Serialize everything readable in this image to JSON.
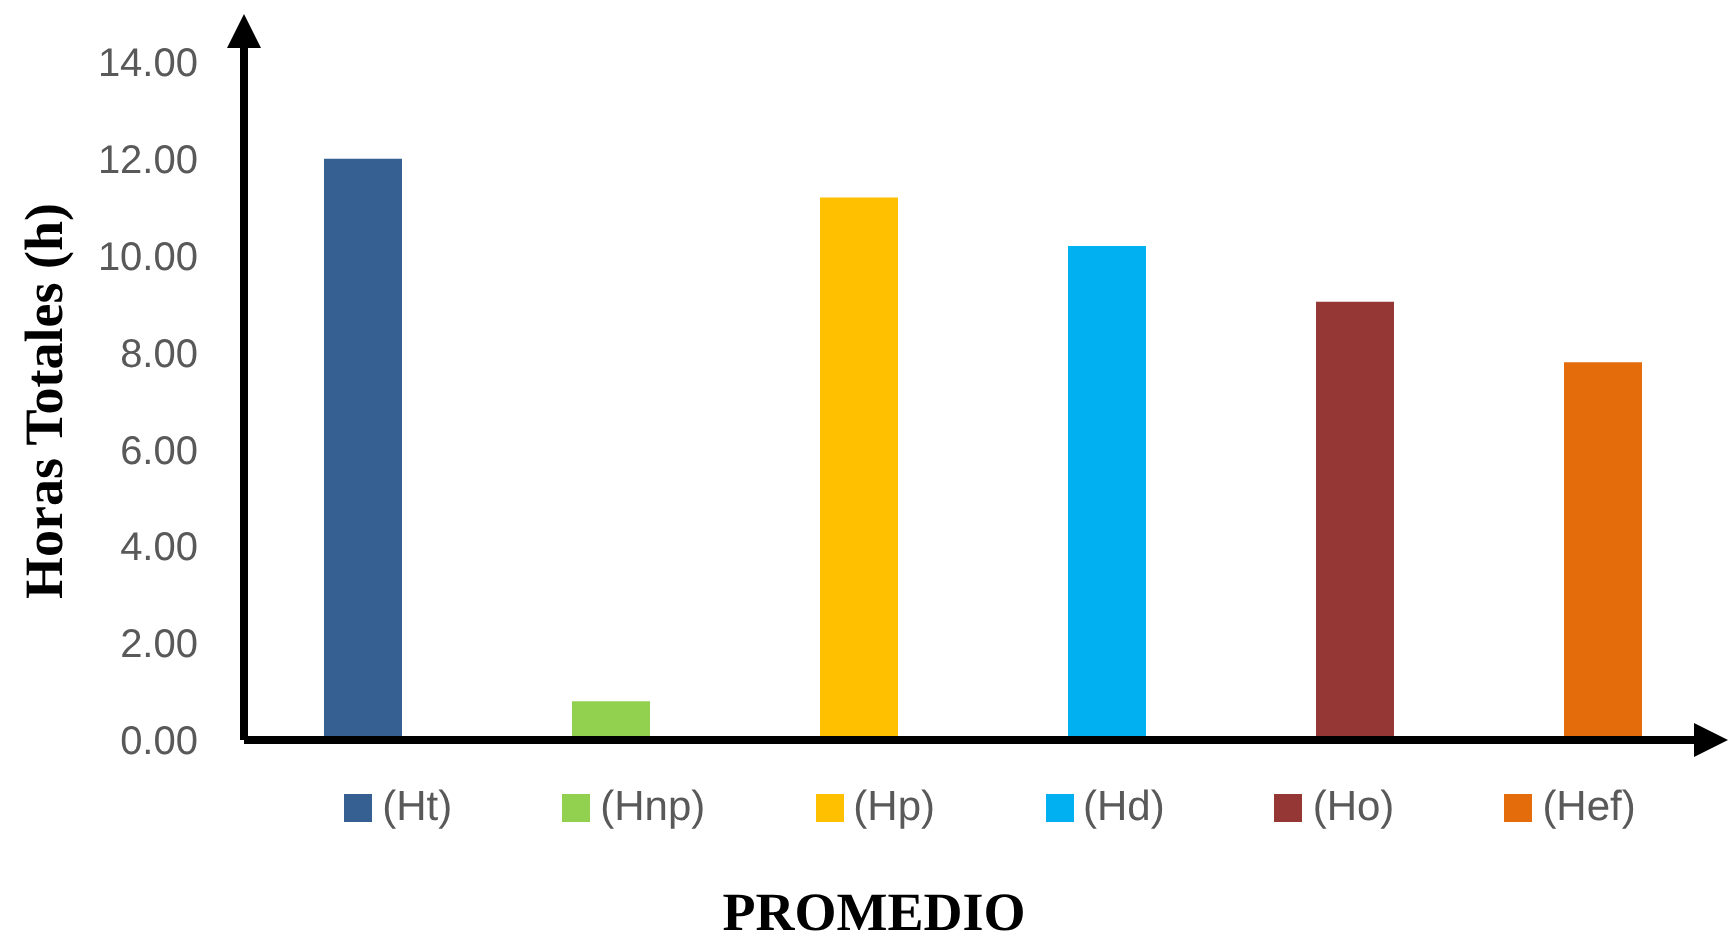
{
  "chart_data": {
    "type": "bar",
    "xlabel": "PROMEDIO",
    "ylabel": "Horas Totales (h)",
    "categories": [
      null
    ],
    "series": [
      {
        "name": "(Ht)",
        "color": "#376092",
        "values": [
          12.0
        ]
      },
      {
        "name": "(Hnp)",
        "color": "#92d050",
        "values": [
          0.8
        ]
      },
      {
        "name": "(Hp)",
        "color": "#ffc000",
        "values": [
          11.2
        ]
      },
      {
        "name": "(Hd)",
        "color": "#00b0f0",
        "values": [
          10.2
        ]
      },
      {
        "name": "(Ho)",
        "color": "#953735",
        "values": [
          9.05
        ]
      },
      {
        "name": "(Hef)",
        "color": "#e46c0a",
        "values": [
          7.8
        ]
      }
    ],
    "ylim": [
      0,
      14
    ],
    "yticks": [
      {
        "value": 0,
        "label": "0.00"
      },
      {
        "value": 2,
        "label": "2.00"
      },
      {
        "value": 4,
        "label": "4.00"
      },
      {
        "value": 6,
        "label": "6.00"
      },
      {
        "value": 8,
        "label": "8.00"
      },
      {
        "value": 10,
        "label": "10.00"
      },
      {
        "value": 12,
        "label": "12.00"
      },
      {
        "value": 14,
        "label": "14.00"
      }
    ],
    "legend": "bottom"
  }
}
